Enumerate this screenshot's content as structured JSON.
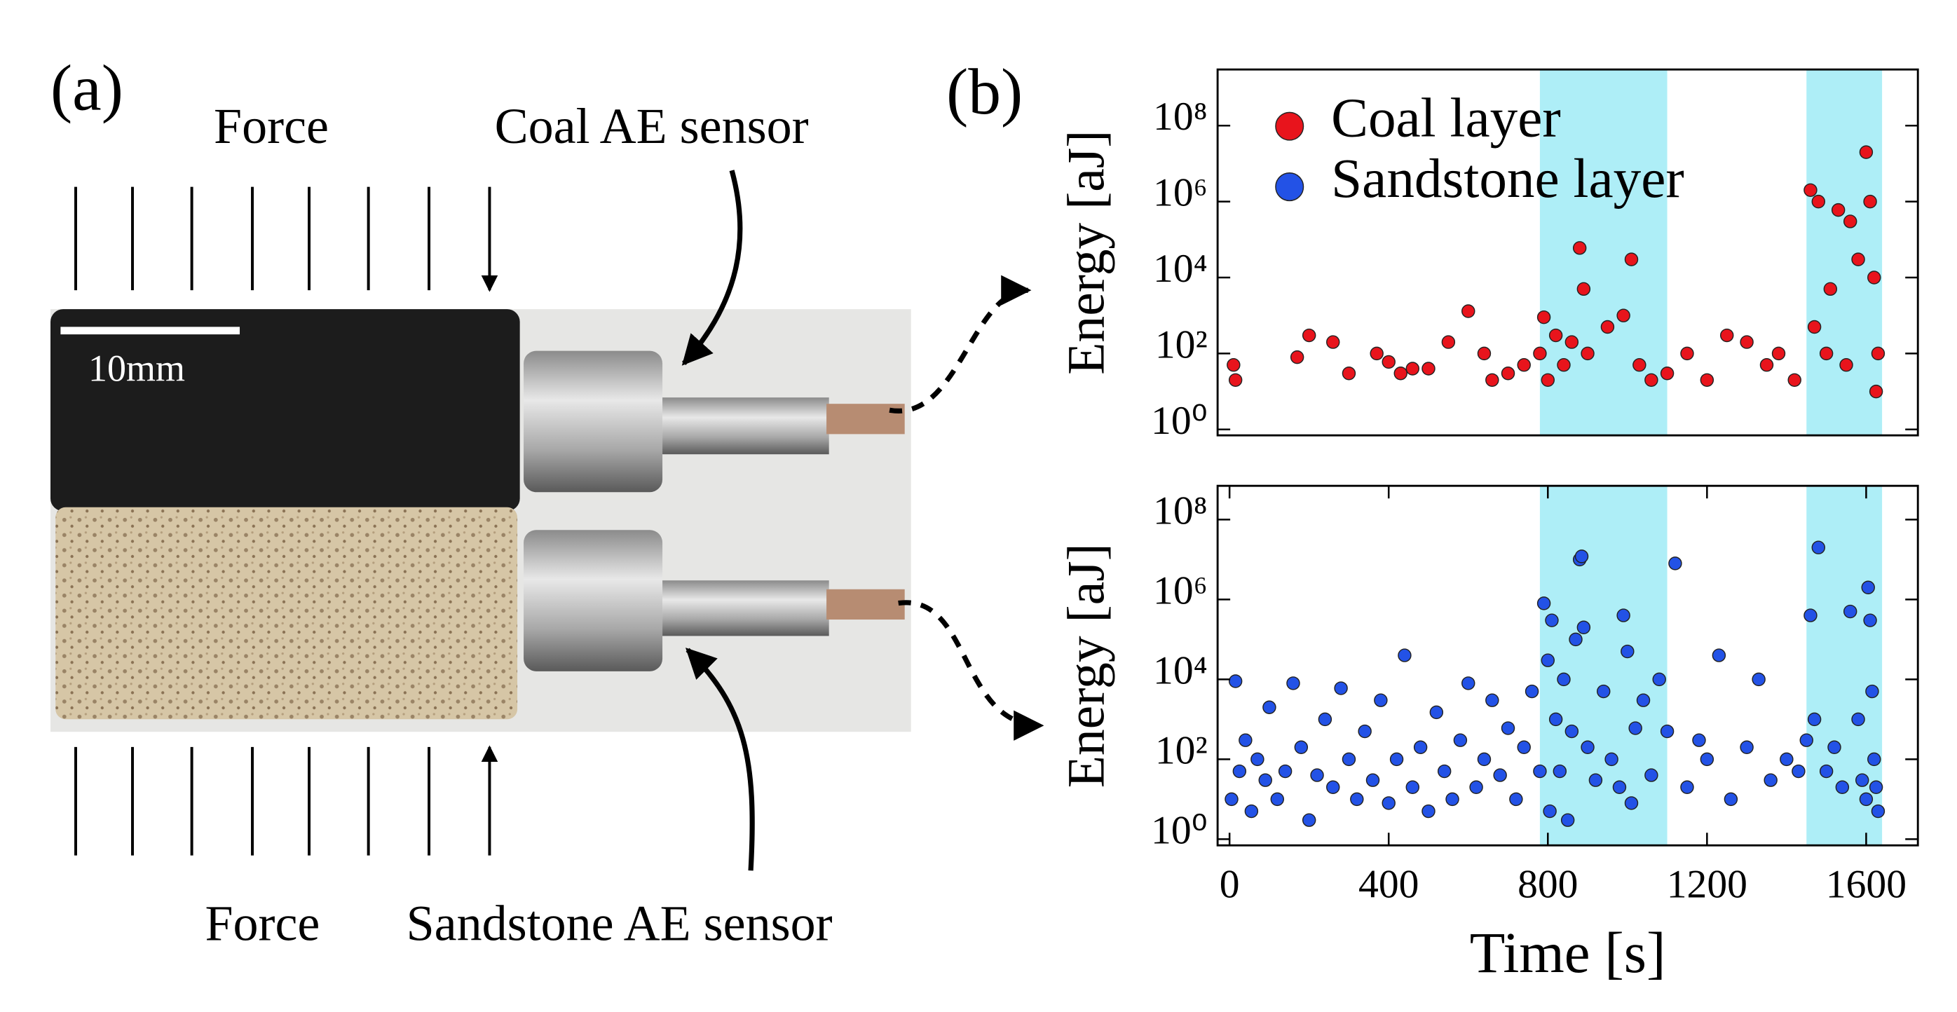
{
  "panel_a": {
    "label": "(a)",
    "force_top": "Force",
    "force_bottom": "Force",
    "coal_sensor": "Coal AE sensor",
    "sandstone_sensor": "Sandstone AE sensor",
    "scale_bar": "10mm"
  },
  "panel_b": {
    "label": "(b)"
  },
  "chart_data": [
    {
      "type": "scatter",
      "ylabel": "Energy [aJ]",
      "log_y": true,
      "legend": "upper left",
      "xlim": [
        -30,
        1730
      ],
      "ylim": [
        0.7,
        3000000000
      ],
      "yticks": [
        {
          "value": 1,
          "label": "10⁰"
        },
        {
          "value": 100,
          "label": "10²"
        },
        {
          "value": 10000,
          "label": "10⁴"
        },
        {
          "value": 1000000,
          "label": "10⁶"
        },
        {
          "value": 100000000,
          "label": "10⁸"
        }
      ],
      "shaded_regions": [
        [
          780,
          1100
        ],
        [
          1450,
          1640
        ]
      ],
      "shade_color": "#aeeef7",
      "series": [
        {
          "name": "Coal layer",
          "color": "#e8141c",
          "x": [
            10,
            15,
            170,
            200,
            260,
            300,
            370,
            400,
            430,
            460,
            500,
            550,
            600,
            640,
            660,
            700,
            740,
            780,
            790,
            800,
            820,
            840,
            860,
            880,
            890,
            900,
            950,
            990,
            1010,
            1030,
            1060,
            1100,
            1150,
            1200,
            1250,
            1300,
            1350,
            1380,
            1420,
            1460,
            1470,
            1480,
            1500,
            1510,
            1530,
            1550,
            1560,
            1580,
            1600,
            1610,
            1620,
            1630,
            1625
          ],
          "values": [
            50,
            20,
            80,
            300,
            200,
            30,
            100,
            60,
            30,
            40,
            40,
            200,
            1300,
            100,
            20,
            30,
            50,
            100,
            900,
            20,
            300,
            50,
            200,
            60000,
            5000,
            100,
            500,
            1000,
            30000,
            50,
            20,
            30,
            100,
            20,
            300,
            200,
            50,
            100,
            20,
            2000000,
            500,
            1000000,
            100,
            5000,
            600000,
            50,
            300000,
            30000,
            20000000,
            1000000,
            10000,
            100,
            10
          ]
        }
      ]
    },
    {
      "type": "scatter",
      "ylabel": "Energy [aJ]",
      "xlabel": "Time [s]",
      "log_y": true,
      "xlim": [
        -30,
        1730
      ],
      "ylim": [
        0.7,
        700000000
      ],
      "xticks": [
        0,
        400,
        800,
        1200,
        1600
      ],
      "yticks": [
        {
          "value": 1,
          "label": "10⁰"
        },
        {
          "value": 100,
          "label": "10²"
        },
        {
          "value": 10000,
          "label": "10⁴"
        },
        {
          "value": 1000000,
          "label": "10⁶"
        },
        {
          "value": 100000000,
          "label": "10⁸"
        }
      ],
      "shaded_regions": [
        [
          780,
          1100
        ],
        [
          1450,
          1640
        ]
      ],
      "shade_color": "#aeeef7",
      "series": [
        {
          "name": "Sandstone layer",
          "color": "#2352e6",
          "x": [
            5,
            15,
            25,
            40,
            55,
            70,
            90,
            100,
            120,
            140,
            160,
            180,
            200,
            220,
            240,
            260,
            280,
            300,
            320,
            340,
            360,
            380,
            400,
            420,
            440,
            460,
            480,
            500,
            520,
            540,
            560,
            580,
            600,
            620,
            640,
            660,
            680,
            700,
            720,
            740,
            760,
            780,
            790,
            800,
            805,
            810,
            820,
            830,
            840,
            850,
            860,
            870,
            880,
            885,
            890,
            900,
            920,
            940,
            960,
            980,
            990,
            1000,
            1010,
            1020,
            1040,
            1060,
            1080,
            1100,
            1120,
            1150,
            1180,
            1200,
            1230,
            1260,
            1300,
            1330,
            1360,
            1400,
            1430,
            1450,
            1460,
            1470,
            1480,
            1500,
            1520,
            1540,
            1560,
            1580,
            1590,
            1600,
            1605,
            1610,
            1615,
            1620,
            1625,
            1630
          ],
          "values": [
            10,
            9000,
            50,
            300,
            5,
            100,
            30,
            2000,
            10,
            50,
            8000,
            200,
            3,
            40,
            1000,
            20,
            6000,
            100,
            10,
            500,
            30,
            3000,
            8,
            100,
            40000,
            20,
            200,
            5,
            1500,
            50,
            10,
            300,
            8000,
            20,
            100,
            3000,
            40,
            600,
            10,
            200,
            5000,
            50,
            800000,
            30000,
            5,
            300000,
            1000,
            50,
            10000,
            3,
            500,
            100000,
            10000000,
            12000000,
            200000,
            200,
            30,
            5000,
            100,
            20,
            400000,
            50000,
            8,
            600,
            3000,
            40,
            10000,
            500,
            8000000,
            20,
            300,
            100,
            40000,
            10,
            200,
            10000,
            30,
            100,
            50,
            300,
            400000,
            1000,
            20000000,
            50,
            200,
            20,
            500000,
            1000,
            30,
            10,
            2000000,
            300000,
            5000,
            100,
            20,
            5
          ]
        }
      ]
    }
  ]
}
